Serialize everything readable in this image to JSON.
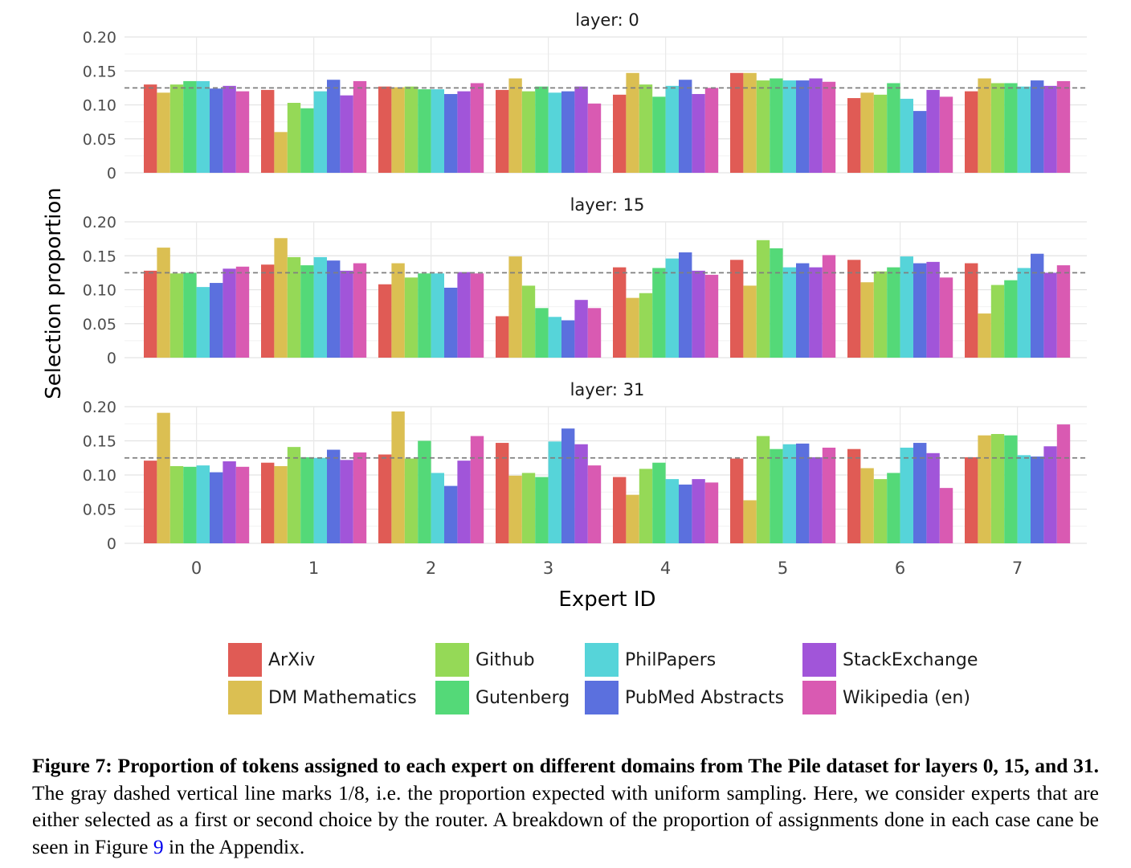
{
  "chart_data": {
    "type": "bar",
    "ylabel": "Selection proportion",
    "xlabel": "Expert ID",
    "categories": [
      "0",
      "1",
      "2",
      "3",
      "4",
      "5",
      "6",
      "7"
    ],
    "yticks": [
      "0.20",
      "0.15",
      "0.10",
      "0.05",
      "0"
    ],
    "ylim": [
      0,
      0.2
    ],
    "reference_line": 0.125,
    "reference_line_style": "gray dashed",
    "grid": true,
    "legend_position": "bottom",
    "series_names": [
      "ArXiv",
      "DM Mathematics",
      "Github",
      "Gutenberg",
      "PhilPapers",
      "PubMed Abstracts",
      "StackExchange",
      "Wikipedia (en)"
    ],
    "series_colors": [
      "#e05b55",
      "#dbbf52",
      "#95d957",
      "#54d978",
      "#56d4d9",
      "#5b70de",
      "#a155d9",
      "#d95ab2"
    ],
    "panels": [
      {
        "title": "layer: 0",
        "series": [
          {
            "name": "ArXiv",
            "values": [
              0.13,
              0.122,
              0.127,
              0.122,
              0.115,
              0.147,
              0.11,
              0.12
            ]
          },
          {
            "name": "DM Mathematics",
            "values": [
              0.118,
              0.06,
              0.126,
              0.139,
              0.147,
              0.147,
              0.118,
              0.139
            ]
          },
          {
            "name": "Github",
            "values": [
              0.13,
              0.103,
              0.127,
              0.12,
              0.13,
              0.136,
              0.115,
              0.132
            ]
          },
          {
            "name": "Gutenberg",
            "values": [
              0.135,
              0.095,
              0.123,
              0.127,
              0.112,
              0.139,
              0.132,
              0.132
            ]
          },
          {
            "name": "PhilPapers",
            "values": [
              0.135,
              0.12,
              0.123,
              0.118,
              0.128,
              0.136,
              0.109,
              0.127
            ]
          },
          {
            "name": "PubMed Abstracts",
            "values": [
              0.124,
              0.137,
              0.116,
              0.12,
              0.137,
              0.136,
              0.091,
              0.136
            ]
          },
          {
            "name": "StackExchange",
            "values": [
              0.128,
              0.114,
              0.12,
              0.127,
              0.116,
              0.139,
              0.122,
              0.128
            ]
          },
          {
            "name": "Wikipedia (en)",
            "values": [
              0.12,
              0.135,
              0.132,
              0.102,
              0.125,
              0.134,
              0.112,
              0.135
            ]
          }
        ]
      },
      {
        "title": "layer: 15",
        "series": [
          {
            "name": "ArXiv",
            "values": [
              0.128,
              0.137,
              0.108,
              0.061,
              0.133,
              0.144,
              0.144,
              0.139
            ]
          },
          {
            "name": "DM Mathematics",
            "values": [
              0.162,
              0.176,
              0.139,
              0.149,
              0.088,
              0.106,
              0.111,
              0.065
            ]
          },
          {
            "name": "Github",
            "values": [
              0.124,
              0.148,
              0.118,
              0.106,
              0.095,
              0.173,
              0.127,
              0.107
            ]
          },
          {
            "name": "Gutenberg",
            "values": [
              0.125,
              0.136,
              0.124,
              0.073,
              0.132,
              0.161,
              0.133,
              0.114
            ]
          },
          {
            "name": "PhilPapers",
            "values": [
              0.104,
              0.148,
              0.124,
              0.06,
              0.146,
              0.133,
              0.149,
              0.132
            ]
          },
          {
            "name": "PubMed Abstracts",
            "values": [
              0.11,
              0.143,
              0.103,
              0.055,
              0.155,
              0.139,
              0.139,
              0.153
            ]
          },
          {
            "name": "StackExchange",
            "values": [
              0.131,
              0.128,
              0.126,
              0.085,
              0.128,
              0.133,
              0.141,
              0.125
            ]
          },
          {
            "name": "Wikipedia (en)",
            "values": [
              0.134,
              0.139,
              0.124,
              0.073,
              0.122,
              0.151,
              0.118,
              0.136
            ]
          }
        ]
      },
      {
        "title": "layer: 31",
        "series": [
          {
            "name": "ArXiv",
            "values": [
              0.121,
              0.118,
              0.13,
              0.147,
              0.097,
              0.124,
              0.138,
              0.126
            ]
          },
          {
            "name": "DM Mathematics",
            "values": [
              0.191,
              0.113,
              0.193,
              0.099,
              0.071,
              0.063,
              0.11,
              0.158
            ]
          },
          {
            "name": "Github",
            "values": [
              0.113,
              0.141,
              0.124,
              0.103,
              0.109,
              0.157,
              0.094,
              0.16
            ]
          },
          {
            "name": "Gutenberg",
            "values": [
              0.112,
              0.126,
              0.15,
              0.097,
              0.118,
              0.138,
              0.103,
              0.158
            ]
          },
          {
            "name": "PhilPapers",
            "values": [
              0.114,
              0.125,
              0.103,
              0.149,
              0.094,
              0.145,
              0.14,
              0.129
            ]
          },
          {
            "name": "PubMed Abstracts",
            "values": [
              0.104,
              0.137,
              0.084,
              0.168,
              0.086,
              0.146,
              0.147,
              0.127
            ]
          },
          {
            "name": "StackExchange",
            "values": [
              0.12,
              0.122,
              0.121,
              0.145,
              0.094,
              0.126,
              0.132,
              0.142
            ]
          },
          {
            "name": "Wikipedia (en)",
            "values": [
              0.112,
              0.133,
              0.157,
              0.114,
              0.089,
              0.14,
              0.081,
              0.174
            ]
          }
        ]
      }
    ]
  },
  "caption": {
    "bold": "Figure 7: Proportion of tokens assigned to each expert on different domains from The Pile dataset for layers 0, 15, and 31.",
    "text_before_ref": " The gray dashed vertical line marks 1/8, i.e. the proportion expected with uniform sampling. Here, we consider experts that are either selected as a first or second choice by the router. A breakdown of the proportion of assignments done in each case cane be seen in Figure ",
    "ref": "9",
    "text_after_ref": " in the Appendix."
  }
}
